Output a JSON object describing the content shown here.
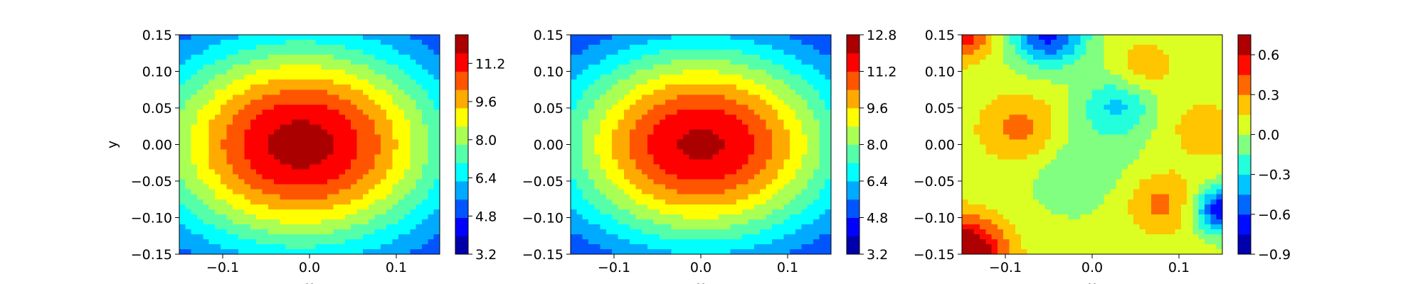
{
  "chart_data": [
    {
      "type": "heatmap",
      "subtype": "filled-contour",
      "title": "",
      "xlabel": "x",
      "ylabel": "y",
      "xlim": [
        -0.15,
        0.15
      ],
      "ylim": [
        -0.15,
        0.15
      ],
      "xticks": [
        "−0.1",
        "0.0",
        "0.1"
      ],
      "yticks": [
        "−0.15",
        "−0.10",
        "−0.05",
        "0.00",
        "0.05",
        "0.10",
        "0.15"
      ],
      "colorbar": {
        "min": 3.2,
        "max": 12.4,
        "levels": 12,
        "ticks": [
          "3.2",
          "4.8",
          "6.4",
          "8.0",
          "9.6",
          "11.2"
        ]
      },
      "field": {
        "peak": 12.0,
        "base": 3.6,
        "cx": -0.01,
        "cy": 0.0,
        "sx": 0.125,
        "sy": 0.105
      }
    },
    {
      "type": "heatmap",
      "subtype": "filled-contour",
      "title": "",
      "xlabel": "x",
      "ylabel": "",
      "xlim": [
        -0.15,
        0.15
      ],
      "ylim": [
        -0.15,
        0.15
      ],
      "xticks": [
        "−0.1",
        "0.0",
        "0.1"
      ],
      "yticks": [
        "−0.15",
        "−0.10",
        "−0.05",
        "0.00",
        "0.05",
        "0.10",
        "0.15"
      ],
      "colorbar": {
        "min": 3.2,
        "max": 12.8,
        "levels": 12,
        "ticks": [
          "3.2",
          "4.8",
          "6.4",
          "8.0",
          "9.6",
          "11.2",
          "12.8"
        ]
      },
      "field": {
        "peak": 12.2,
        "base": 3.6,
        "cx": 0.0,
        "cy": 0.0,
        "sx": 0.12,
        "sy": 0.1
      }
    },
    {
      "type": "heatmap",
      "subtype": "filled-contour",
      "title": "",
      "xlabel": "x",
      "ylabel": "",
      "xlim": [
        -0.15,
        0.15
      ],
      "ylim": [
        -0.15,
        0.15
      ],
      "xticks": [
        "−0.1",
        "0.0",
        "0.1"
      ],
      "yticks": [
        "−0.15",
        "−0.10",
        "−0.05",
        "0.00",
        "0.05",
        "0.10",
        "0.15"
      ],
      "colorbar": {
        "min": -0.9,
        "max": 0.75,
        "levels": 11,
        "ticks": [
          "−0.9",
          "−0.6",
          "−0.3",
          "0.0",
          "0.3",
          "0.6"
        ]
      },
      "blobs": [
        {
          "x": -0.08,
          "y": 0.02,
          "s": 0.035,
          "v": 0.35
        },
        {
          "x": 0.03,
          "y": 0.055,
          "s": 0.028,
          "v": -0.35
        },
        {
          "x": 0.08,
          "y": -0.08,
          "s": 0.03,
          "v": 0.3
        },
        {
          "x": -0.15,
          "y": -0.15,
          "s": 0.035,
          "v": 0.85
        },
        {
          "x": -0.05,
          "y": 0.15,
          "s": 0.03,
          "v": -0.7
        },
        {
          "x": 0.15,
          "y": -0.09,
          "s": 0.022,
          "v": -0.8
        },
        {
          "x": -0.15,
          "y": 0.15,
          "s": 0.025,
          "v": 0.5
        },
        {
          "x": 0.06,
          "y": 0.105,
          "s": 0.025,
          "v": 0.22
        },
        {
          "x": 0.13,
          "y": 0.02,
          "s": 0.03,
          "v": 0.2
        },
        {
          "x": -0.02,
          "y": -0.02,
          "s": 0.05,
          "v": -0.18
        }
      ]
    }
  ]
}
